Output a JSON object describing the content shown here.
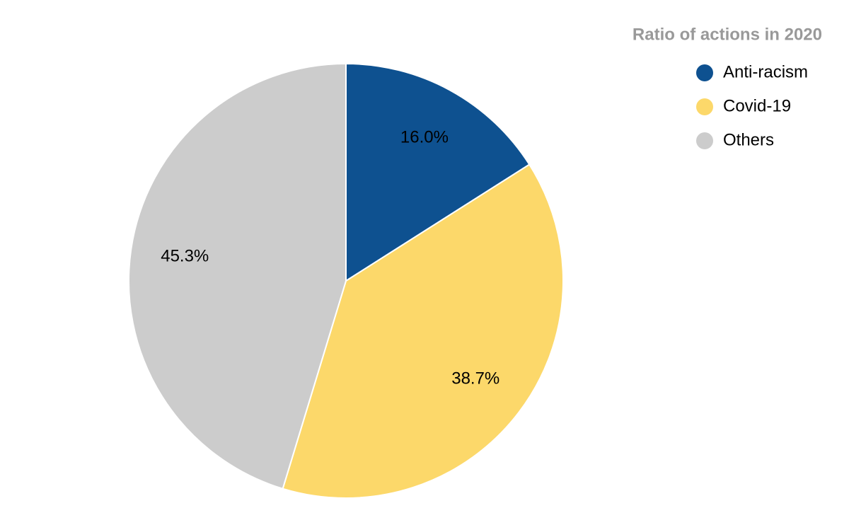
{
  "chart_data": {
    "type": "pie",
    "title": "Ratio of actions in 2020",
    "categories": [
      "Anti-racism",
      "Covid-19",
      "Others"
    ],
    "values": [
      16.0,
      38.7,
      45.3
    ],
    "value_labels": [
      "16.0%",
      "38.7%",
      "45.3%"
    ],
    "colors": [
      "#0e5190",
      "#fcd86a",
      "#cccccc"
    ],
    "legend": "top-right"
  }
}
